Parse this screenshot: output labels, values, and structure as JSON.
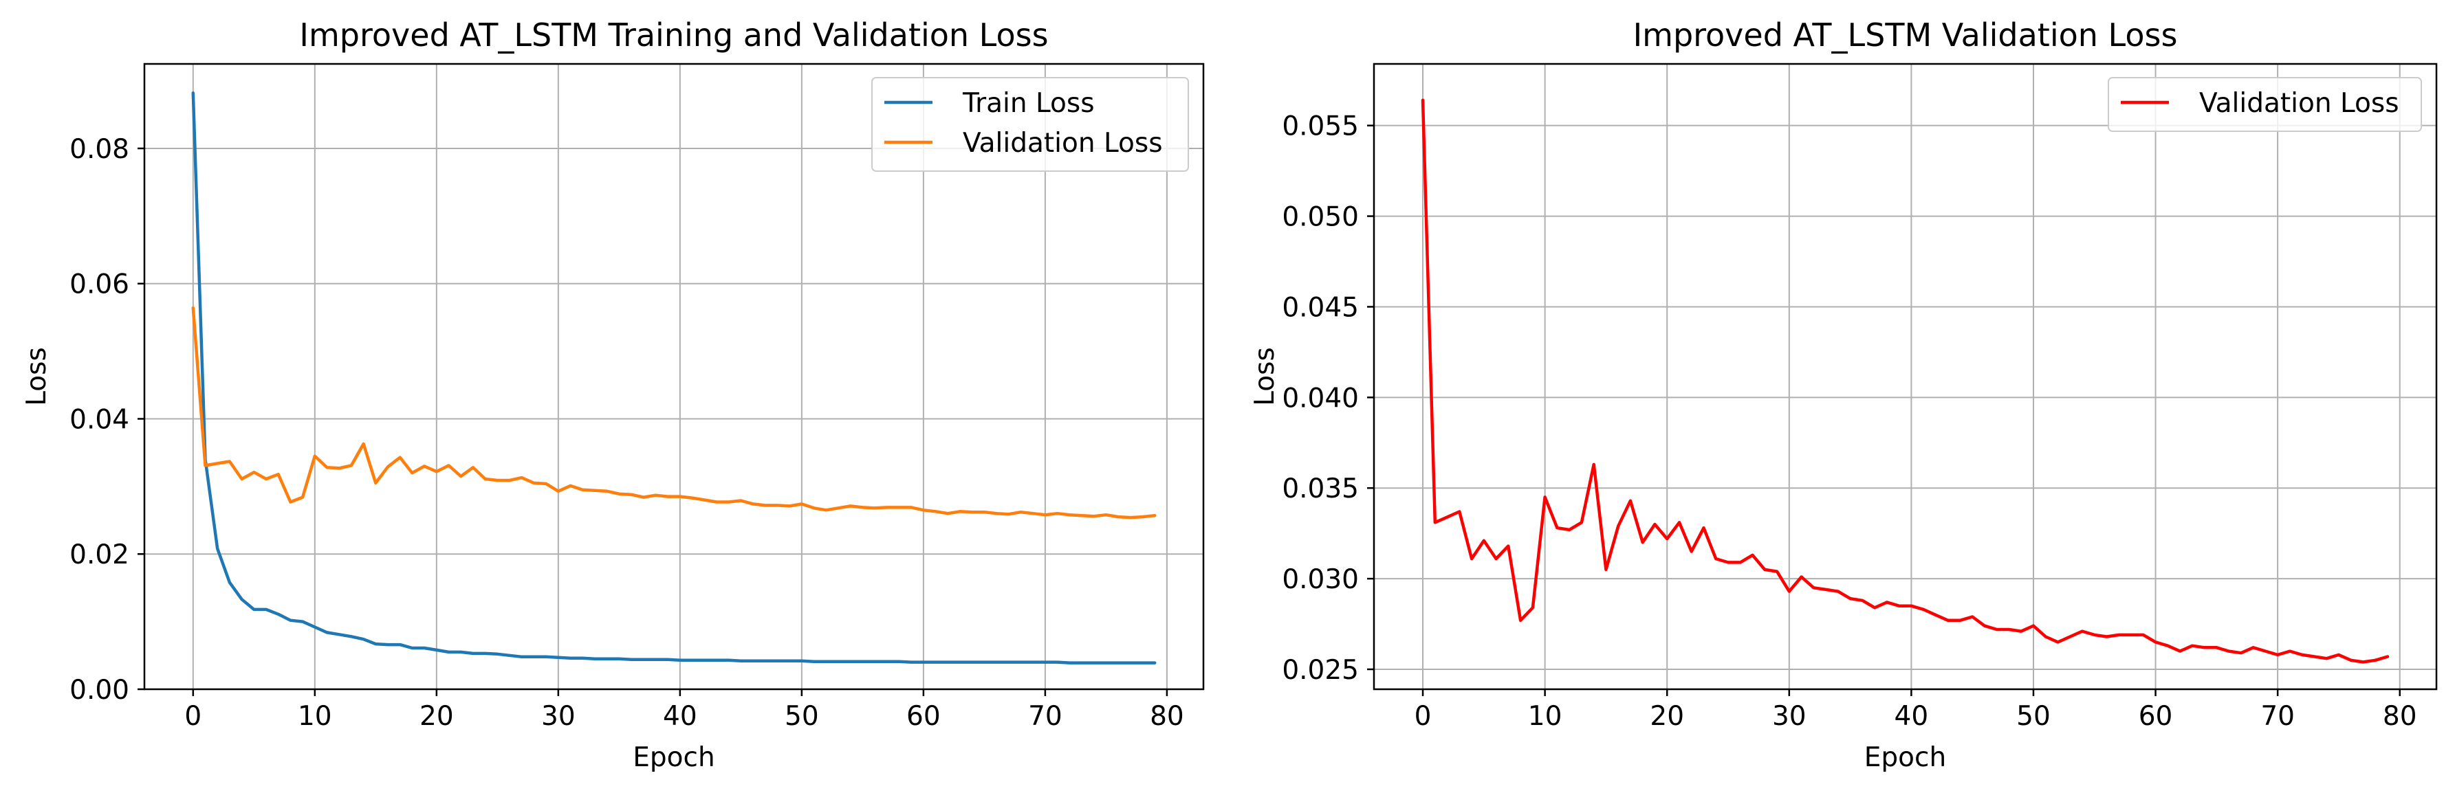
{
  "chart_data": [
    {
      "type": "line",
      "title": "Improved AT_LSTM Training and Validation Loss",
      "xlabel": "Epoch",
      "ylabel": "Loss",
      "xlim": [
        -4,
        83
      ],
      "ylim": [
        0,
        0.0925
      ],
      "xticks": [
        0,
        10,
        20,
        30,
        40,
        50,
        60,
        70,
        80
      ],
      "yticks": [
        0.0,
        0.02,
        0.04,
        0.06,
        0.08
      ],
      "ytick_labels": [
        "0.00",
        "0.02",
        "0.04",
        "0.06",
        "0.08"
      ],
      "grid": true,
      "legend_position": "top-right",
      "series": [
        {
          "name": "Train Loss",
          "color": "#1f77b4",
          "values": [
            0.0882,
            0.034,
            0.0208,
            0.0158,
            0.0133,
            0.0118,
            0.0118,
            0.0111,
            0.0102,
            0.01,
            0.0092,
            0.0084,
            0.0081,
            0.0078,
            0.0074,
            0.0067,
            0.0066,
            0.0066,
            0.0061,
            0.0061,
            0.0058,
            0.0055,
            0.0055,
            0.0053,
            0.0053,
            0.0052,
            0.005,
            0.0048,
            0.0048,
            0.0048,
            0.0047,
            0.0046,
            0.0046,
            0.0045,
            0.0045,
            0.0045,
            0.0044,
            0.0044,
            0.0044,
            0.0044,
            0.0043,
            0.0043,
            0.0043,
            0.0043,
            0.0043,
            0.0042,
            0.0042,
            0.0042,
            0.0042,
            0.0042,
            0.0042,
            0.0041,
            0.0041,
            0.0041,
            0.0041,
            0.0041,
            0.0041,
            0.0041,
            0.0041,
            0.004,
            0.004,
            0.004,
            0.004,
            0.004,
            0.004,
            0.004,
            0.004,
            0.004,
            0.004,
            0.004,
            0.004,
            0.004,
            0.0039,
            0.0039,
            0.0039,
            0.0039,
            0.0039,
            0.0039,
            0.0039,
            0.0039
          ]
        },
        {
          "name": "Validation Loss",
          "color": "#ff7f0e",
          "values": [
            0.0564,
            0.0331,
            0.0334,
            0.0337,
            0.0311,
            0.0321,
            0.0311,
            0.0318,
            0.0277,
            0.0284,
            0.0345,
            0.0328,
            0.0327,
            0.0331,
            0.0363,
            0.0305,
            0.0329,
            0.0343,
            0.032,
            0.033,
            0.0322,
            0.0331,
            0.0315,
            0.0328,
            0.0311,
            0.0309,
            0.0309,
            0.0313,
            0.0305,
            0.0304,
            0.0293,
            0.0301,
            0.0295,
            0.0294,
            0.0293,
            0.0289,
            0.0288,
            0.0284,
            0.0287,
            0.0285,
            0.0285,
            0.0283,
            0.028,
            0.0277,
            0.0277,
            0.0279,
            0.0274,
            0.0272,
            0.0272,
            0.0271,
            0.0274,
            0.0268,
            0.0265,
            0.0268,
            0.0271,
            0.0269,
            0.0268,
            0.0269,
            0.0269,
            0.0269,
            0.0265,
            0.0263,
            0.026,
            0.0263,
            0.0262,
            0.0262,
            0.026,
            0.0259,
            0.0262,
            0.026,
            0.0258,
            0.026,
            0.0258,
            0.0257,
            0.0256,
            0.0258,
            0.0255,
            0.0254,
            0.0255,
            0.0257
          ]
        }
      ]
    },
    {
      "type": "line",
      "title": "Improved AT_LSTM Validation Loss",
      "xlabel": "Epoch",
      "ylabel": "Loss",
      "xlim": [
        -4,
        83
      ],
      "ylim": [
        0.0239,
        0.0584
      ],
      "xticks": [
        0,
        10,
        20,
        30,
        40,
        50,
        60,
        70,
        80
      ],
      "yticks": [
        0.025,
        0.03,
        0.035,
        0.04,
        0.045,
        0.05,
        0.055
      ],
      "ytick_labels": [
        "0.025",
        "0.030",
        "0.035",
        "0.040",
        "0.045",
        "0.050",
        "0.055"
      ],
      "grid": true,
      "legend_position": "top-right",
      "series": [
        {
          "name": "Validation Loss",
          "color": "#ff0000",
          "values": [
            0.0564,
            0.0331,
            0.0334,
            0.0337,
            0.0311,
            0.0321,
            0.0311,
            0.0318,
            0.0277,
            0.0284,
            0.0345,
            0.0328,
            0.0327,
            0.0331,
            0.0363,
            0.0305,
            0.0329,
            0.0343,
            0.032,
            0.033,
            0.0322,
            0.0331,
            0.0315,
            0.0328,
            0.0311,
            0.0309,
            0.0309,
            0.0313,
            0.0305,
            0.0304,
            0.0293,
            0.0301,
            0.0295,
            0.0294,
            0.0293,
            0.0289,
            0.0288,
            0.0284,
            0.0287,
            0.0285,
            0.0285,
            0.0283,
            0.028,
            0.0277,
            0.0277,
            0.0279,
            0.0274,
            0.0272,
            0.0272,
            0.0271,
            0.0274,
            0.0268,
            0.0265,
            0.0268,
            0.0271,
            0.0269,
            0.0268,
            0.0269,
            0.0269,
            0.0269,
            0.0265,
            0.0263,
            0.026,
            0.0263,
            0.0262,
            0.0262,
            0.026,
            0.0259,
            0.0262,
            0.026,
            0.0258,
            0.026,
            0.0258,
            0.0257,
            0.0256,
            0.0258,
            0.0255,
            0.0254,
            0.0255,
            0.0257
          ]
        }
      ]
    }
  ]
}
